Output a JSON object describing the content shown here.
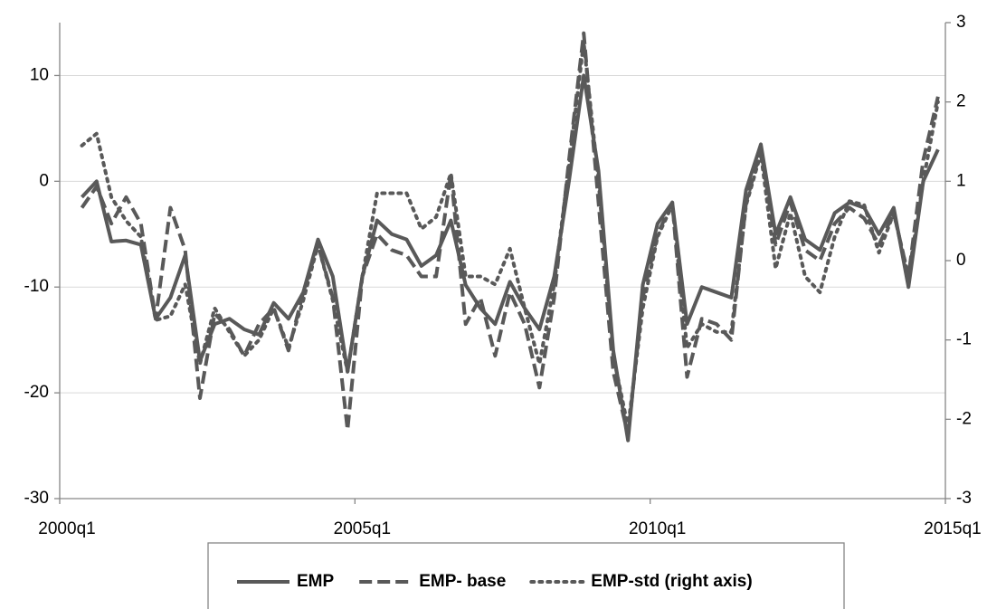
{
  "chart_data": {
    "type": "line",
    "x": [
      2000.375,
      2000.625,
      2000.875,
      2001.125,
      2001.375,
      2001.625,
      2001.875,
      2002.125,
      2002.375,
      2002.625,
      2002.875,
      2003.125,
      2003.375,
      2003.625,
      2003.875,
      2004.125,
      2004.375,
      2004.625,
      2004.875,
      2005.125,
      2005.375,
      2005.625,
      2005.875,
      2006.125,
      2006.375,
      2006.625,
      2006.875,
      2007.125,
      2007.375,
      2007.625,
      2007.875,
      2008.125,
      2008.375,
      2008.625,
      2008.875,
      2009.125,
      2009.375,
      2009.625,
      2009.875,
      2010.125,
      2010.375,
      2010.625,
      2010.875,
      2011.125,
      2011.375,
      2011.625,
      2011.875,
      2012.125,
      2012.375,
      2012.625,
      2012.875,
      2013.125,
      2013.375,
      2013.625,
      2013.875,
      2014.125,
      2014.375,
      2014.625,
      2014.875
    ],
    "series": [
      {
        "name": "EMP",
        "color": "#595959",
        "style": "solid",
        "axis": "y",
        "values": [
          -1.5,
          0,
          -5.7,
          -5.6,
          -6,
          -13,
          -11,
          -7,
          -17,
          -13.5,
          -13,
          -14,
          -14.5,
          -11.5,
          -13,
          -10.5,
          -5.5,
          -9,
          -18,
          -9,
          -3.7,
          -5,
          -5.5,
          -8,
          -7,
          -3.7,
          -9.8,
          -12,
          -13.5,
          -9.5,
          -12,
          -14,
          -9,
          0,
          10,
          1,
          -16,
          -24.5,
          -9.8,
          -4,
          -2,
          -13.5,
          -10,
          -10.5,
          -11,
          -0.8,
          3.5,
          -5,
          -1.5,
          -5.5,
          -6.5,
          -3,
          -2,
          -2.5,
          -5,
          -2.5,
          -10,
          0,
          3
        ]
      },
      {
        "name": "EMP- base",
        "color": "#595959",
        "style": "dashed",
        "axis": "y",
        "values": [
          -2.5,
          -0.5,
          -4,
          -1.5,
          -4,
          -13,
          -2.5,
          -6.5,
          -20.5,
          -12.5,
          -14,
          -16.5,
          -13.5,
          -12,
          -16,
          -10.5,
          -6,
          -11,
          -23.5,
          -9,
          -5,
          -6.5,
          -7,
          -9,
          -9,
          0.7,
          -13.5,
          -11,
          -16.5,
          -10.5,
          -13.5,
          -19.5,
          -11,
          2,
          14,
          -2,
          -18,
          -24,
          -11,
          -5,
          -2,
          -18.5,
          -13,
          -13.5,
          -15,
          -2,
          3,
          -6,
          -2,
          -6.5,
          -7.5,
          -4,
          -2.5,
          -3.5,
          -6,
          -3,
          -9,
          2,
          8
        ]
      },
      {
        "name": "EMP-std (right axis)",
        "color": "#595959",
        "style": "dotted",
        "axis": "y2",
        "values": [
          1.45,
          1.6,
          0.8,
          0.5,
          0.3,
          -0.75,
          -0.7,
          -0.3,
          -1.3,
          -0.6,
          -0.9,
          -1.2,
          -1.0,
          -0.6,
          -1.1,
          -0.5,
          0.2,
          -0.5,
          -1.4,
          -0.2,
          0.85,
          0.85,
          0.85,
          0.4,
          0.55,
          1.1,
          -0.2,
          -0.2,
          -0.3,
          0.15,
          -0.6,
          -1.3,
          -0.3,
          1.2,
          2.75,
          1.0,
          -1.2,
          -2.1,
          -0.6,
          0.3,
          0.7,
          -1.1,
          -0.8,
          -0.9,
          -0.9,
          0.7,
          1.35,
          -0.1,
          0.6,
          -0.2,
          -0.4,
          0.3,
          0.75,
          0.7,
          0.1,
          0.6,
          -0.2,
          1.0,
          2.0
        ]
      }
    ],
    "xlim": [
      2000,
      2015
    ],
    "xticks": [
      {
        "value": 2000,
        "label": "2000q1"
      },
      {
        "value": 2005,
        "label": "2005q1"
      },
      {
        "value": 2010,
        "label": "2010q1"
      },
      {
        "value": 2015,
        "label": "2015q1"
      }
    ],
    "ylim": [
      -30,
      15
    ],
    "yticks": [
      -30,
      -20,
      -10,
      0,
      10
    ],
    "y2lim": [
      -3,
      3
    ],
    "y2ticks": [
      -3,
      -2,
      -1,
      0,
      1,
      2,
      3
    ],
    "grid": true,
    "legend": "bottom"
  }
}
